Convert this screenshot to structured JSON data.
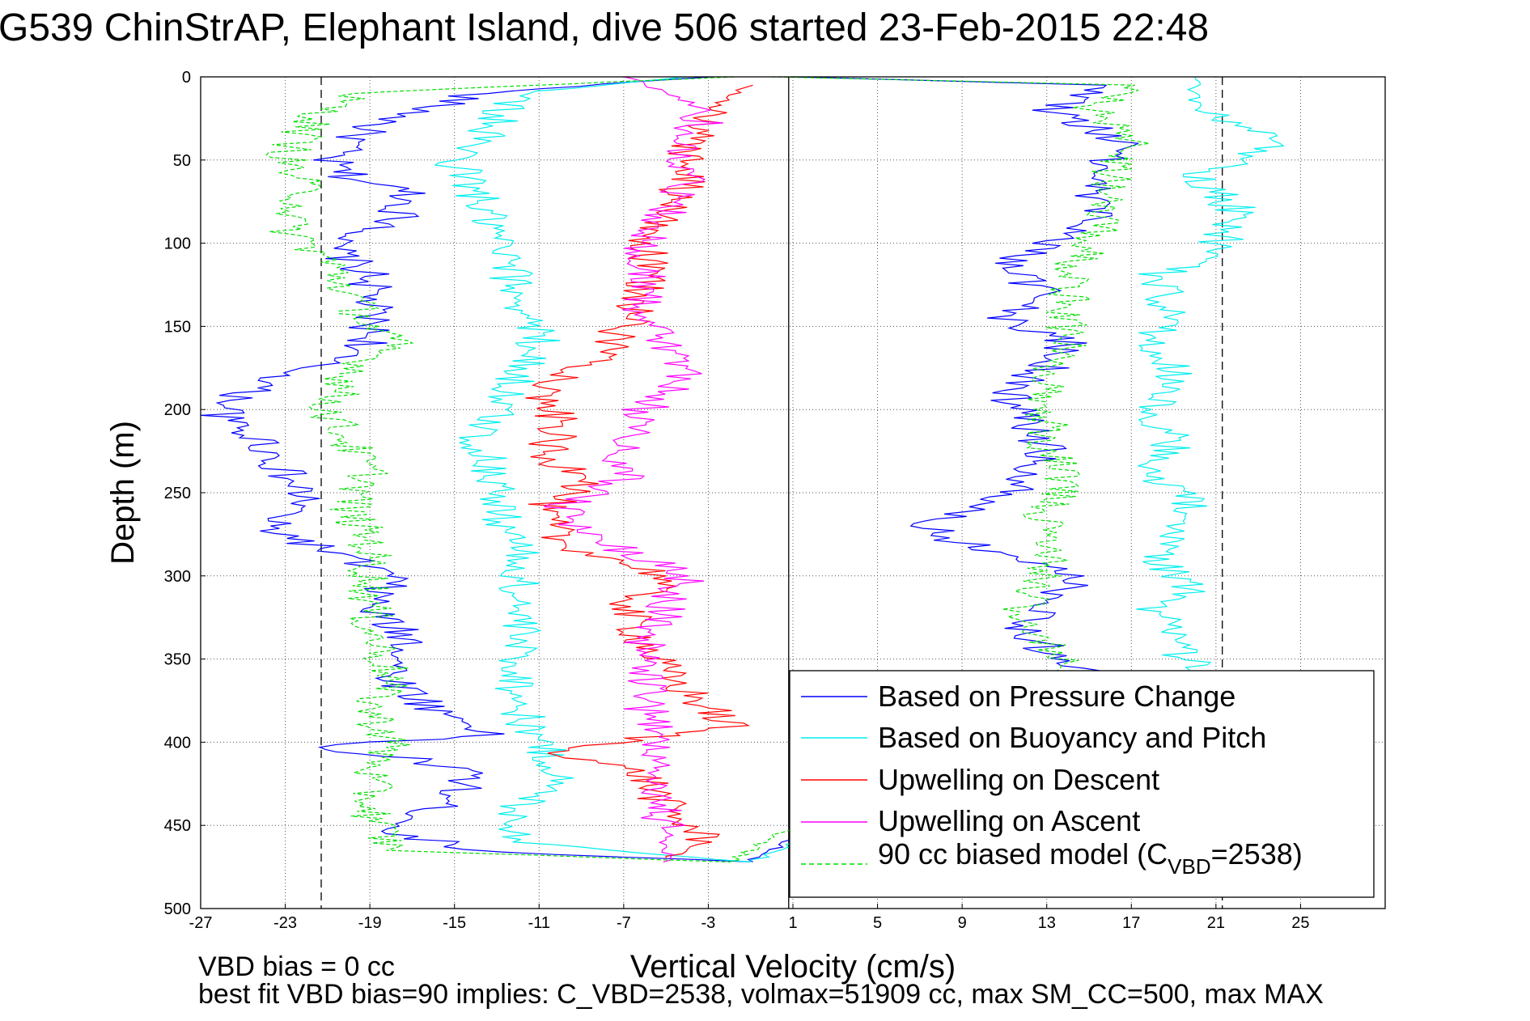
{
  "chart_data": {
    "type": "line",
    "title": "G539 ChinStrAP, Elephant Island, dive 506 started 23-Feb-2015 22:48",
    "xlabel": "Vertical Velocity (cm/s)",
    "ylabel": "Depth (m)",
    "xlim": [
      -27,
      29
    ],
    "ylim": [
      0,
      500
    ],
    "y_reversed": true,
    "grid": true,
    "x_ticks": [
      -27,
      -23,
      -19,
      -15,
      -11,
      -7,
      -3,
      1,
      5,
      9,
      13,
      17,
      21,
      25
    ],
    "y_ticks": [
      0,
      50,
      100,
      150,
      200,
      250,
      300,
      350,
      400,
      450,
      500
    ],
    "reference_lines": [
      {
        "x": -21.3,
        "style": "dashed"
      },
      {
        "x": 0.8,
        "style": "solid"
      },
      {
        "x": 21.3,
        "style": "dashed"
      }
    ],
    "legend_position": "bottom-right",
    "series": [
      {
        "name": "Based on Pressure Change",
        "color": "#0000ff",
        "style": "solid",
        "descent": [
          [
            -3,
            0
          ],
          [
            -14,
            10
          ],
          [
            -19,
            30
          ],
          [
            -21,
            50
          ],
          [
            -20,
            60
          ],
          [
            -17,
            70
          ],
          [
            -18,
            90
          ],
          [
            -21,
            100
          ],
          [
            -19,
            120
          ],
          [
            -19,
            140
          ],
          [
            -19,
            160
          ],
          [
            -22,
            175
          ],
          [
            -25,
            190
          ],
          [
            -26,
            205
          ],
          [
            -24,
            220
          ],
          [
            -23,
            240
          ],
          [
            -22,
            255
          ],
          [
            -24,
            270
          ],
          [
            -21,
            285
          ],
          [
            -18,
            300
          ],
          [
            -19,
            320
          ],
          [
            -17,
            340
          ],
          [
            -18,
            360
          ],
          [
            -16,
            380
          ],
          [
            -13,
            395
          ],
          [
            -22,
            403
          ],
          [
            -17,
            410
          ],
          [
            -14,
            420
          ],
          [
            -16,
            440
          ],
          [
            -18,
            455
          ],
          [
            -13,
            466
          ],
          [
            -1,
            472
          ]
        ],
        "ascent": [
          [
            -1,
            472
          ],
          [
            15,
            360
          ],
          [
            13,
            345
          ],
          [
            12,
            330
          ],
          [
            13,
            310
          ],
          [
            15,
            300
          ],
          [
            11,
            290
          ],
          [
            9,
            280
          ],
          [
            7,
            270
          ],
          [
            10,
            260
          ],
          [
            12,
            245
          ],
          [
            13,
            225
          ],
          [
            12,
            205
          ],
          [
            11,
            190
          ],
          [
            13,
            175
          ],
          [
            14,
            160
          ],
          [
            11,
            145
          ],
          [
            13,
            130
          ],
          [
            11,
            115
          ],
          [
            13,
            100
          ],
          [
            16,
            85
          ],
          [
            15,
            70
          ],
          [
            15,
            55
          ],
          [
            17,
            40
          ],
          [
            13,
            20
          ],
          [
            16,
            5
          ],
          [
            1,
            0
          ]
        ]
      },
      {
        "name": "Based on Buoyancy and Pitch",
        "color": "#00eeee",
        "style": "solid",
        "descent": [
          [
            -4,
            0
          ],
          [
            -12,
            10
          ],
          [
            -13,
            25
          ],
          [
            -14,
            40
          ],
          [
            -15,
            50
          ],
          [
            -14,
            70
          ],
          [
            -13,
            100
          ],
          [
            -12,
            130
          ],
          [
            -11,
            160
          ],
          [
            -12,
            180
          ],
          [
            -13,
            200
          ],
          [
            -14,
            220
          ],
          [
            -13,
            240
          ],
          [
            -13,
            260
          ],
          [
            -12,
            280
          ],
          [
            -12,
            300
          ],
          [
            -12,
            330
          ],
          [
            -12,
            360
          ],
          [
            -12,
            380
          ],
          [
            -11,
            400
          ],
          [
            -10,
            420
          ],
          [
            -12,
            440
          ],
          [
            -12,
            460
          ],
          [
            -1,
            472
          ]
        ],
        "ascent": [
          [
            -1,
            472
          ],
          [
            20,
            355
          ],
          [
            19,
            340
          ],
          [
            18,
            320
          ],
          [
            20,
            305
          ],
          [
            18,
            290
          ],
          [
            19,
            270
          ],
          [
            20,
            255
          ],
          [
            18,
            240
          ],
          [
            19,
            220
          ],
          [
            18,
            200
          ],
          [
            19,
            180
          ],
          [
            18,
            160
          ],
          [
            19,
            140
          ],
          [
            18,
            120
          ],
          [
            21,
            105
          ],
          [
            22,
            80
          ],
          [
            20,
            60
          ],
          [
            24,
            40
          ],
          [
            20,
            20
          ],
          [
            20,
            0
          ]
        ]
      },
      {
        "name": "Upwelling on Descent",
        "color": "#ff0000",
        "style": "solid",
        "data": [
          [
            -1,
            5
          ],
          [
            -3,
            20
          ],
          [
            -4,
            40
          ],
          [
            -4,
            60
          ],
          [
            -5,
            80
          ],
          [
            -6,
            100
          ],
          [
            -6,
            130
          ],
          [
            -7,
            150
          ],
          [
            -8,
            170
          ],
          [
            -11,
            190
          ],
          [
            -10,
            210
          ],
          [
            -11,
            230
          ],
          [
            -8,
            240
          ],
          [
            -11,
            260
          ],
          [
            -10,
            280
          ],
          [
            -5,
            300
          ],
          [
            -7,
            320
          ],
          [
            -6,
            340
          ],
          [
            -5,
            360
          ],
          [
            -2,
            390
          ],
          [
            -10,
            405
          ],
          [
            -6,
            420
          ],
          [
            -5,
            440
          ],
          [
            -3,
            460
          ],
          [
            -5,
            470
          ]
        ]
      },
      {
        "name": "Upwelling on Ascent",
        "color": "#ff00ff",
        "style": "solid",
        "data": [
          [
            -5,
            472
          ],
          [
            -5,
            450
          ],
          [
            -6,
            420
          ],
          [
            -5,
            400
          ],
          [
            -6,
            380
          ],
          [
            -6,
            360
          ],
          [
            -6,
            340
          ],
          [
            -5,
            320
          ],
          [
            -4,
            300
          ],
          [
            -8,
            280
          ],
          [
            -10,
            260
          ],
          [
            -7,
            240
          ],
          [
            -7,
            220
          ],
          [
            -6,
            200
          ],
          [
            -4,
            180
          ],
          [
            -5,
            160
          ],
          [
            -6,
            140
          ],
          [
            -6,
            120
          ],
          [
            -6,
            100
          ],
          [
            -5,
            80
          ],
          [
            -4,
            60
          ],
          [
            -4,
            40
          ],
          [
            -3,
            20
          ],
          [
            -7,
            0
          ]
        ]
      },
      {
        "name": "90 cc biased model (C VBD=2538)",
        "color": "#00dd00",
        "style": "dashed",
        "descent": [
          [
            -2,
            0
          ],
          [
            -20,
            10
          ],
          [
            -22,
            30
          ],
          [
            -23,
            50
          ],
          [
            -22,
            70
          ],
          [
            -23,
            90
          ],
          [
            -21,
            110
          ],
          [
            -20,
            130
          ],
          [
            -19,
            150
          ],
          [
            -18,
            160
          ],
          [
            -20,
            180
          ],
          [
            -21,
            200
          ],
          [
            -20,
            220
          ],
          [
            -19,
            240
          ],
          [
            -20,
            260
          ],
          [
            -19,
            280
          ],
          [
            -19,
            300
          ],
          [
            -19,
            330
          ],
          [
            -18,
            360
          ],
          [
            -19,
            380
          ],
          [
            -18,
            400
          ],
          [
            -19,
            420
          ],
          [
            -19,
            440
          ],
          [
            -18,
            465
          ],
          [
            -2,
            472
          ]
        ],
        "ascent": [
          [
            -2,
            472
          ],
          [
            14,
            360
          ],
          [
            13,
            340
          ],
          [
            12,
            320
          ],
          [
            13,
            300
          ],
          [
            13,
            280
          ],
          [
            13,
            260
          ],
          [
            14,
            240
          ],
          [
            13,
            220
          ],
          [
            13,
            200
          ],
          [
            13,
            180
          ],
          [
            14,
            160
          ],
          [
            14,
            140
          ],
          [
            14,
            120
          ],
          [
            15,
            100
          ],
          [
            16,
            80
          ],
          [
            16,
            60
          ],
          [
            17,
            40
          ],
          [
            15,
            20
          ],
          [
            17,
            5
          ],
          [
            0,
            0
          ]
        ]
      }
    ],
    "legend": {
      "entries": [
        "Based on Pressure Change",
        "Based on Buoyancy and Pitch",
        "Upwelling on Descent",
        "Upwelling on Ascent",
        "90 cc biased model (C"
      ],
      "last_sub": "VBD",
      "last_tail": "=2538)"
    }
  },
  "notes": {
    "line1": "VBD bias = 0 cc",
    "line2": "best fit VBD bias=90 implies: C_VBD=2538, volmax=51909 cc, max SM_CC=500, max MAX"
  }
}
